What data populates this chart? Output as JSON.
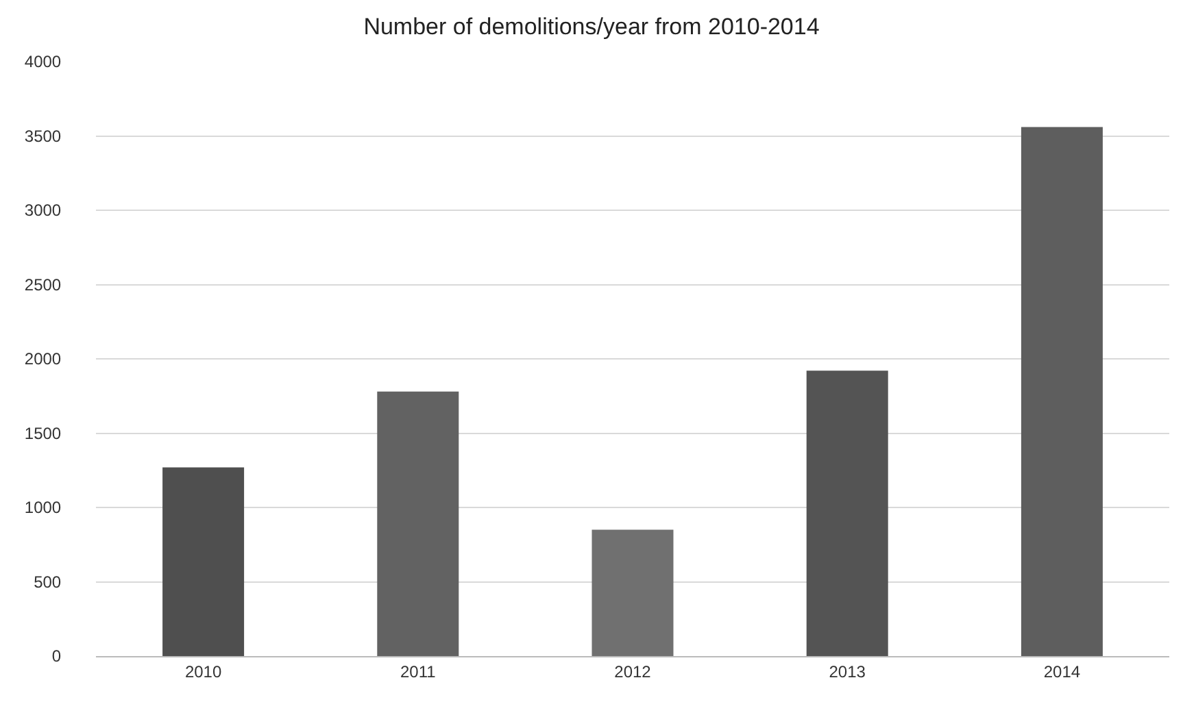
{
  "chart_data": {
    "type": "bar",
    "title": "Number of demolitions/year from 2010-2014",
    "categories": [
      "2010",
      "2011",
      "2012",
      "2013",
      "2014"
    ],
    "values": [
      1270,
      1780,
      850,
      1920,
      3560
    ],
    "colors": [
      "#4f4f4f",
      "#626262",
      "#707070",
      "#545454",
      "#5e5e5e"
    ],
    "ylim": [
      0,
      4000
    ],
    "yticks": [
      0,
      500,
      1000,
      1500,
      2000,
      2500,
      3000,
      3500,
      4000
    ],
    "grid": "y"
  }
}
